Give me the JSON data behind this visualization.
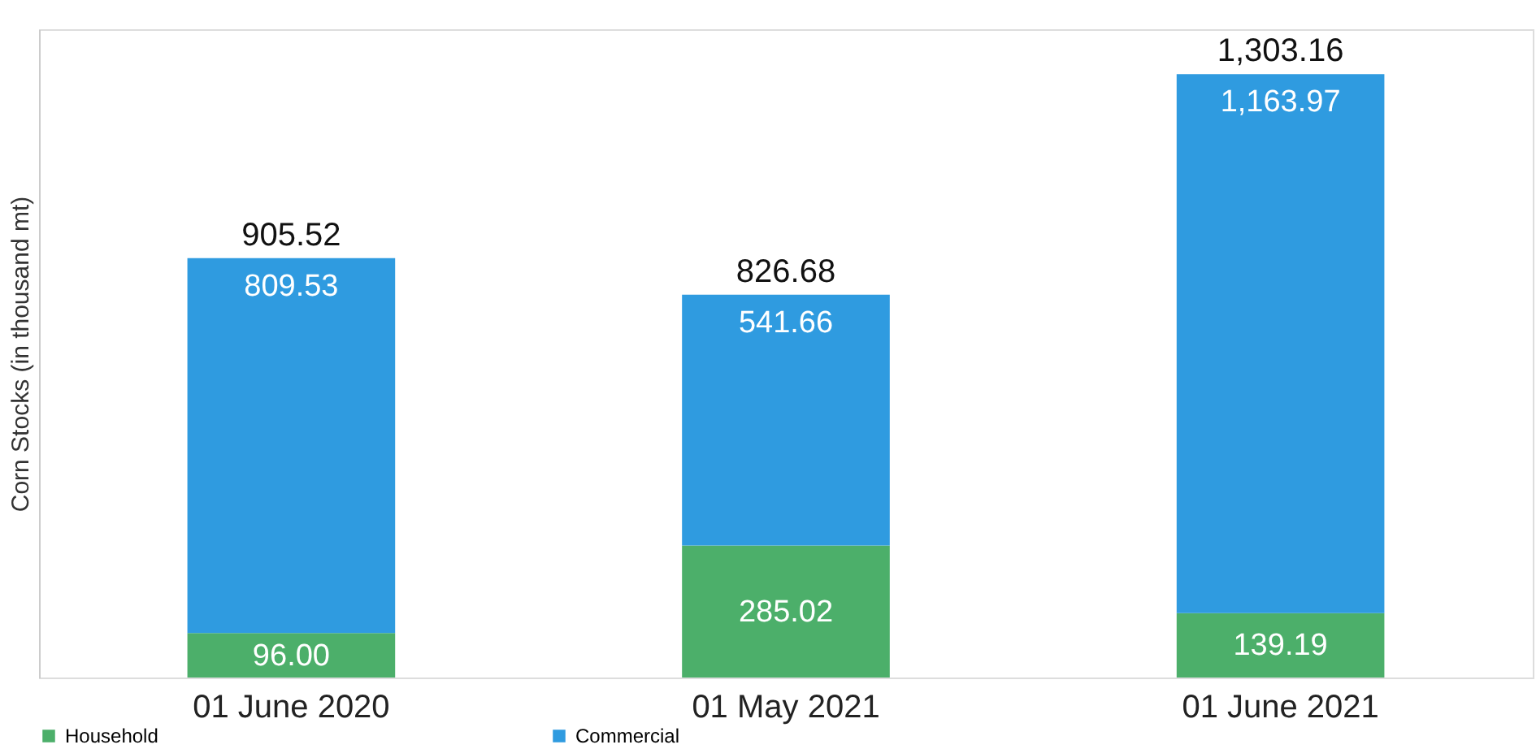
{
  "chart_data": {
    "type": "bar",
    "stacked": true,
    "ylabel": "Corn Stocks (in thousand mt)",
    "categories": [
      "01 June 2020",
      "01 May 2021",
      "01 June 2021"
    ],
    "series": [
      {
        "name": "Household",
        "color": "#4caf6a",
        "values": [
          96.0,
          285.02,
          139.19
        ],
        "value_labels": [
          "96.00",
          "285.02",
          "139.19"
        ]
      },
      {
        "name": "Commercial",
        "color": "#2f9be0",
        "values": [
          809.53,
          541.66,
          1163.97
        ],
        "value_labels": [
          "809.53",
          "541.66",
          "1,163.97"
        ]
      }
    ],
    "totals": [
      "905.52",
      "826.68",
      "1,303.16"
    ],
    "ylim": [
      0,
      1400
    ],
    "tick_labels": "x",
    "grid": false,
    "legend": "bottom"
  }
}
